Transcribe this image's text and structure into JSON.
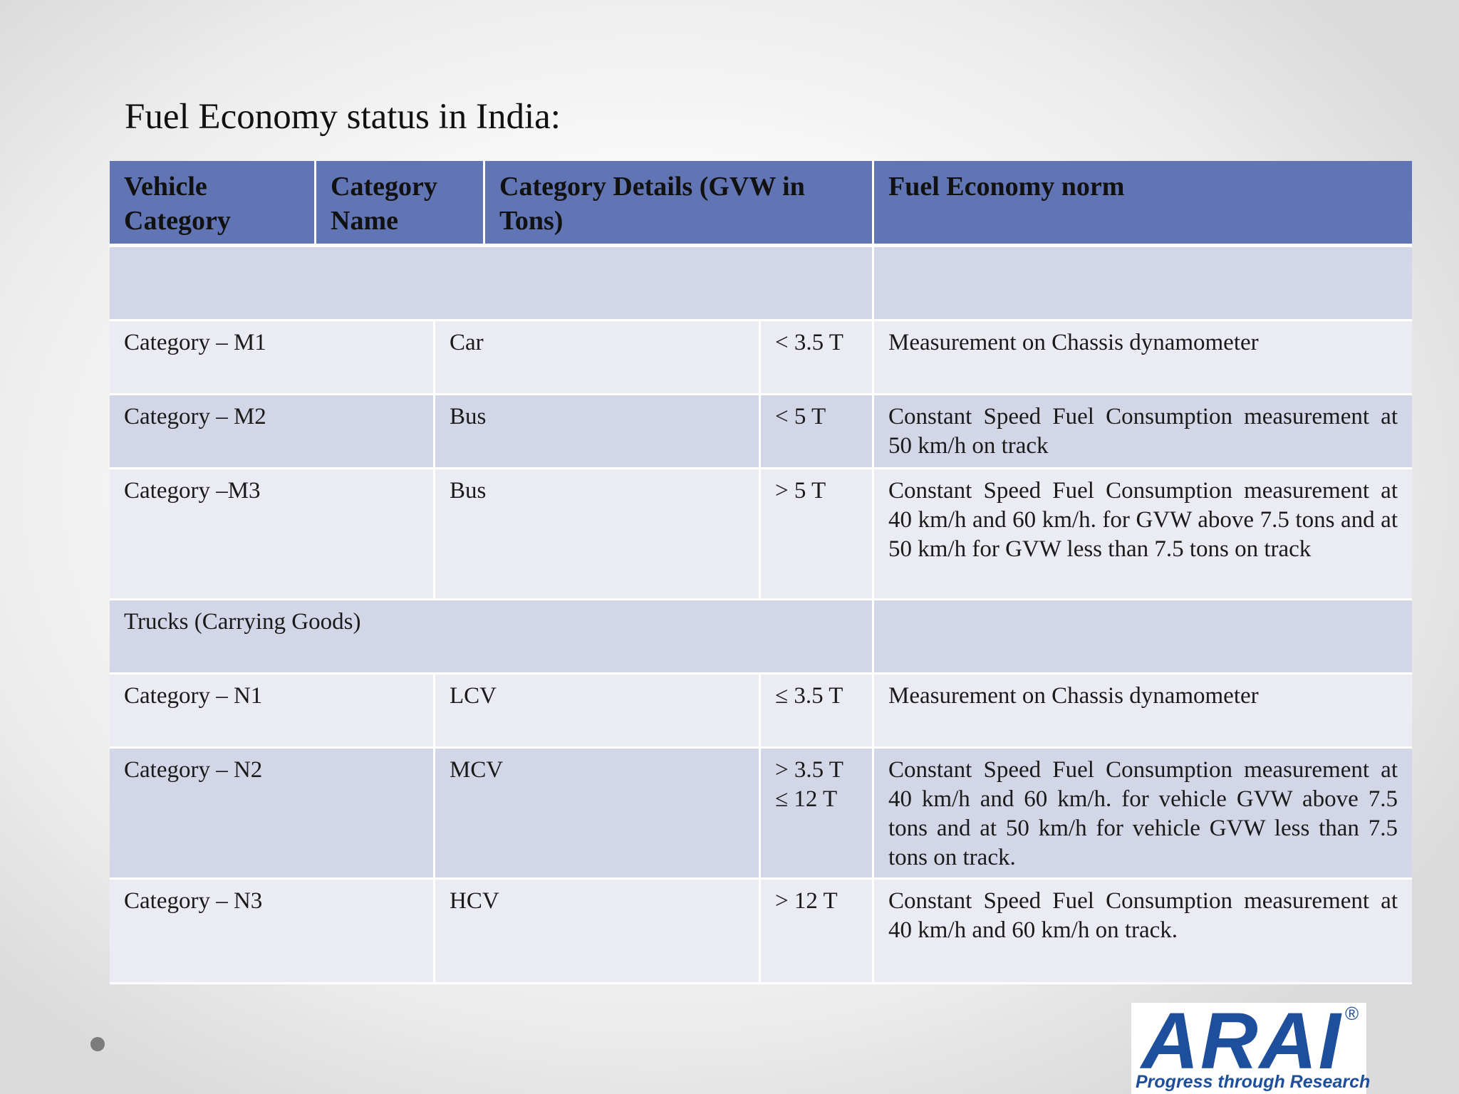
{
  "title": "Fuel Economy status in India:",
  "table": {
    "headers": [
      "Vehicle Category",
      "Category Name",
      "Category Details (GVW in Tons)",
      "Fuel Economy norm"
    ],
    "rows": [
      {
        "category": "",
        "name": "",
        "details": "",
        "norm": ""
      },
      {
        "category": "Category – M1",
        "name": "Car",
        "details": "< 3.5 T",
        "norm": "Measurement on Chassis dynamometer"
      },
      {
        "category": "Category – M2",
        "name": "Bus",
        "details": "< 5 T",
        "norm": "Constant Speed Fuel Consumption measurement  at 50 km/h on track"
      },
      {
        "category": "Category –M3",
        "name": "Bus",
        "details": "> 5 T",
        "norm": "Constant Speed Fuel Consumption measurement  at 40 km/h and 60 km/h. for GVW above 7.5 tons and at 50 km/h for GVW less than 7.5 tons on track"
      },
      {
        "category": "Trucks (Carrying Goods)",
        "name": "",
        "details": "",
        "norm": ""
      },
      {
        "category": "Category – N1",
        "name": "LCV",
        "details": "≤ 3.5 T",
        "norm": "Measurement on Chassis dynamometer"
      },
      {
        "category": "Category – N2",
        "name": "MCV",
        "details": "> 3.5 T ≤ 12 T",
        "norm": "Constant Speed Fuel Consumption measurement  at 40 km/h and 60 km/h. for  vehicle GVW above 7.5 tons and at 50 km/h for  vehicle GVW less than 7.5 tons on track."
      },
      {
        "category": "Category – N3",
        "name": "HCV",
        "details": "> 12 T",
        "norm": "Constant Speed Fuel Consumption measurement  at 40 km/h and 60 km/h on track."
      }
    ]
  },
  "logo": {
    "text": "ARAI",
    "registered": "®",
    "tagline": "Progress through Research"
  },
  "colors": {
    "header_bg": "#6175b5",
    "row_odd": "#d3d6e6",
    "row_even": "#eaebf3",
    "logo_blue": "#1e4f9c"
  }
}
